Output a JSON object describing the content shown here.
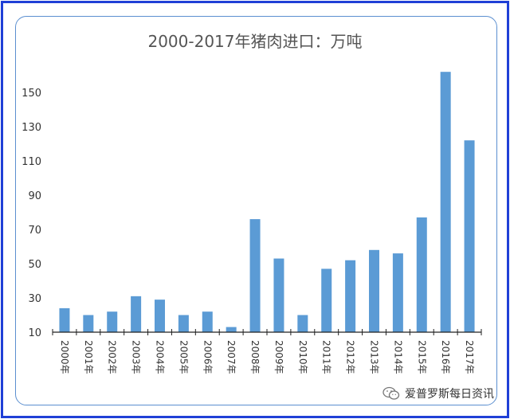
{
  "chart_data": {
    "type": "bar",
    "title": "2000-2017年猪肉进口：万吨",
    "xlabel": "",
    "ylabel": "",
    "categories": [
      "2000年",
      "2001年",
      "2002年",
      "2003年",
      "2004年",
      "2005年",
      "2006年",
      "2007年",
      "2008年",
      "2009年",
      "2010年",
      "2011年",
      "2012年",
      "2013年",
      "2014年",
      "2015年",
      "2016年",
      "2017年"
    ],
    "values": [
      24,
      20,
      22,
      31,
      29,
      20,
      22,
      13,
      76,
      53,
      20,
      47,
      52,
      58,
      56,
      77,
      162,
      122
    ],
    "ylim": [
      10,
      170
    ],
    "yticks": [
      10,
      30,
      50,
      70,
      90,
      110,
      130,
      150
    ],
    "grid": false,
    "bar_color": "#5b9bd5"
  },
  "watermark": {
    "icon": "wechat-icon",
    "text": "爱普罗斯每日资讯"
  }
}
